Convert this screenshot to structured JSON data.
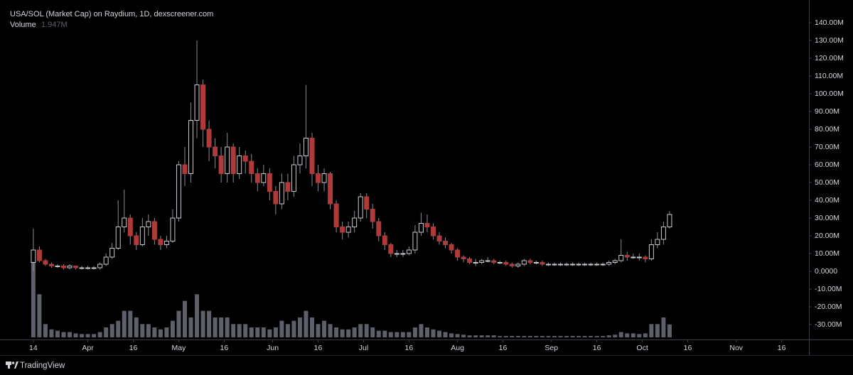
{
  "chart_data": {
    "type": "candlestick",
    "title": "USA/SOL (Market Cap) on Raydium, 1D, dexscreener.com",
    "volume_name": "Volume",
    "volume_value_label": "1.947M",
    "footer": "TradingView",
    "x": [
      "03-14",
      "03-16",
      "03-18",
      "03-20",
      "03-22",
      "03-24",
      "03-26",
      "03-28",
      "03-30",
      "04-01",
      "04-03",
      "04-05",
      "04-07",
      "04-09",
      "04-11",
      "04-13",
      "04-15",
      "04-17",
      "04-19",
      "04-21",
      "04-23",
      "04-25",
      "04-27",
      "04-29",
      "05-01",
      "05-03",
      "05-05",
      "05-07",
      "05-09",
      "05-11",
      "05-13",
      "05-15",
      "05-17",
      "05-19",
      "05-21",
      "05-23",
      "05-25",
      "05-27",
      "05-29",
      "05-31",
      "06-02",
      "06-04",
      "06-06",
      "06-08",
      "06-10",
      "06-12",
      "06-14",
      "06-16",
      "06-18",
      "06-20",
      "06-22",
      "06-24",
      "06-26",
      "06-28",
      "06-30",
      "07-02",
      "07-04",
      "07-06",
      "07-08",
      "07-10",
      "07-12",
      "07-14",
      "07-16",
      "07-18",
      "07-20",
      "07-22",
      "07-24",
      "07-26",
      "07-28",
      "07-30",
      "08-01",
      "08-03",
      "08-05",
      "08-07",
      "08-09",
      "08-11",
      "08-13",
      "08-15",
      "08-17",
      "08-19",
      "08-21",
      "08-23",
      "08-25",
      "08-27",
      "08-29",
      "08-31",
      "09-02",
      "09-04",
      "09-06",
      "09-08",
      "09-10",
      "09-12",
      "09-14",
      "09-16",
      "09-18",
      "09-20",
      "09-22",
      "09-24",
      "09-26",
      "09-28",
      "09-30",
      "10-02",
      "10-04",
      "10-06",
      "10-08",
      "10-10"
    ],
    "open": [
      5,
      12,
      6,
      4,
      3,
      3,
      2,
      3,
      2,
      2,
      2,
      2,
      4,
      8,
      13,
      25,
      30,
      20,
      15,
      25,
      28,
      18,
      15,
      17,
      30,
      60,
      55,
      85,
      105,
      80,
      70,
      65,
      55,
      70,
      55,
      65,
      62,
      55,
      50,
      55,
      45,
      38,
      50,
      45,
      60,
      65,
      75,
      55,
      50,
      55,
      38,
      25,
      22,
      25,
      30,
      42,
      35,
      28,
      20,
      15,
      10,
      10,
      10,
      12,
      22,
      27,
      25,
      20,
      17,
      15,
      12,
      8,
      7,
      5,
      5,
      6,
      6,
      5,
      5,
      4,
      3,
      4,
      6,
      5,
      5,
      4,
      4,
      4,
      4,
      4,
      4,
      4,
      4,
      4,
      4,
      4,
      5,
      6,
      9,
      8,
      8,
      8,
      7,
      15,
      18,
      25
    ],
    "high": [
      24,
      14,
      7,
      5,
      4,
      4,
      4,
      3,
      3,
      3,
      3,
      5,
      10,
      16,
      40,
      46,
      32,
      22,
      30,
      32,
      30,
      20,
      20,
      35,
      62,
      70,
      95,
      130,
      108,
      85,
      75,
      70,
      78,
      72,
      70,
      68,
      66,
      58,
      60,
      58,
      48,
      55,
      55,
      65,
      72,
      105,
      78,
      60,
      58,
      56,
      40,
      28,
      28,
      34,
      44,
      44,
      38,
      30,
      22,
      16,
      12,
      12,
      14,
      26,
      33,
      32,
      27,
      22,
      19,
      16,
      13,
      9,
      8,
      7,
      7,
      8,
      7,
      6,
      6,
      5,
      5,
      7,
      7,
      6,
      6,
      5,
      5,
      5,
      5,
      5,
      5,
      5,
      5,
      5,
      5,
      6,
      7,
      18,
      11,
      10,
      10,
      9,
      18,
      22,
      28,
      34
    ],
    "low": [
      0,
      5,
      3,
      2,
      2,
      1,
      1,
      1,
      1,
      1,
      1,
      1,
      3,
      7,
      12,
      22,
      15,
      12,
      14,
      20,
      15,
      12,
      13,
      16,
      28,
      48,
      50,
      75,
      70,
      62,
      58,
      50,
      50,
      50,
      52,
      55,
      50,
      45,
      48,
      40,
      32,
      35,
      40,
      42,
      55,
      58,
      48,
      45,
      45,
      35,
      22,
      18,
      19,
      22,
      28,
      30,
      24,
      17,
      12,
      8,
      8,
      8,
      9,
      10,
      20,
      22,
      18,
      15,
      13,
      10,
      6,
      5,
      4,
      3,
      4,
      5,
      4,
      4,
      3,
      2,
      2,
      3,
      4,
      4,
      3,
      3,
      3,
      3,
      3,
      3,
      3,
      3,
      3,
      3,
      3,
      3,
      4,
      5,
      6,
      7,
      6,
      5,
      6,
      13,
      15,
      24
    ],
    "close": [
      12,
      6,
      4,
      3,
      3,
      2,
      3,
      2,
      2,
      2,
      2,
      4,
      8,
      13,
      25,
      30,
      20,
      15,
      25,
      28,
      18,
      15,
      17,
      30,
      60,
      55,
      85,
      105,
      80,
      70,
      65,
      55,
      70,
      55,
      65,
      62,
      55,
      50,
      55,
      45,
      38,
      50,
      45,
      60,
      65,
      75,
      55,
      50,
      55,
      38,
      25,
      22,
      25,
      30,
      42,
      35,
      28,
      20,
      15,
      10,
      10,
      10,
      12,
      22,
      27,
      25,
      20,
      17,
      15,
      12,
      8,
      7,
      5,
      5,
      6,
      6,
      5,
      5,
      4,
      3,
      4,
      6,
      5,
      5,
      4,
      4,
      4,
      4,
      4,
      4,
      4,
      4,
      4,
      4,
      4,
      5,
      6,
      9,
      8,
      8,
      8,
      7,
      15,
      18,
      25,
      32
    ],
    "volume": [
      12,
      6.5,
      2,
      1.2,
      1,
      0.8,
      0.8,
      0.6,
      0.5,
      0.5,
      0.5,
      0.8,
      1.5,
      2,
      2.5,
      4,
      4,
      3,
      2,
      2,
      1.5,
      1.2,
      1.5,
      2.5,
      4,
      5.5,
      3,
      6.5,
      4,
      4,
      3,
      3,
      3,
      2,
      2,
      2,
      1.5,
      1.5,
      1.5,
      1.2,
      1.5,
      2.5,
      2,
      2.5,
      3,
      4,
      3,
      2,
      2.5,
      2,
      1.5,
      1.2,
      1.2,
      1.5,
      2,
      2,
      1.5,
      1,
      1,
      0.8,
      0.8,
      0.8,
      0.8,
      1.5,
      2,
      1.5,
      1.2,
      1,
      0.8,
      0.6,
      0.5,
      0.4,
      0.3,
      0.3,
      0.3,
      0.3,
      0.3,
      0.2,
      0.2,
      0.2,
      0.2,
      0.2,
      0.2,
      0.2,
      0.2,
      0.2,
      0.2,
      0.2,
      0.2,
      0.2,
      0.2,
      0.2,
      0.2,
      0.2,
      0.2,
      0.3,
      0.4,
      0.8,
      0.6,
      0.6,
      0.5,
      0.6,
      2,
      2,
      3,
      1.947
    ],
    "xlim": [
      "03-03",
      "11-25"
    ],
    "xticks": [
      {
        "value": "03-14",
        "label": "14"
      },
      {
        "value": "04-01",
        "label": "Apr"
      },
      {
        "value": "04-16",
        "label": "16"
      },
      {
        "value": "05-01",
        "label": "May"
      },
      {
        "value": "05-16",
        "label": "16"
      },
      {
        "value": "06-01",
        "label": "Jun"
      },
      {
        "value": "06-16",
        "label": "16"
      },
      {
        "value": "07-01",
        "label": "Jul"
      },
      {
        "value": "07-16",
        "label": "16"
      },
      {
        "value": "08-01",
        "label": "Aug"
      },
      {
        "value": "08-16",
        "label": "16"
      },
      {
        "value": "09-01",
        "label": "Sep"
      },
      {
        "value": "09-16",
        "label": "16"
      },
      {
        "value": "10-01",
        "label": "Oct"
      },
      {
        "value": "10-16",
        "label": "16"
      },
      {
        "value": "11-01",
        "label": "Nov"
      },
      {
        "value": "11-16",
        "label": "16"
      }
    ],
    "ylim": [
      -37.2,
      149.6
    ],
    "yticks": [
      {
        "value": 140,
        "label": "140.00M"
      },
      {
        "value": 130,
        "label": "130.00M"
      },
      {
        "value": 120,
        "label": "120.00M"
      },
      {
        "value": 110,
        "label": "110.00M"
      },
      {
        "value": 100,
        "label": "100.00M"
      },
      {
        "value": 90,
        "label": "90.00M"
      },
      {
        "value": 80,
        "label": "80.00M"
      },
      {
        "value": 70,
        "label": "70.00M"
      },
      {
        "value": 60,
        "label": "60.00M"
      },
      {
        "value": 50,
        "label": "50.00M"
      },
      {
        "value": 40,
        "label": "40.00M"
      },
      {
        "value": 30,
        "label": "30.00M"
      },
      {
        "value": 20,
        "label": "20.00M"
      },
      {
        "value": 10,
        "label": "10.00M"
      },
      {
        "value": 0,
        "label": "0.0000"
      },
      {
        "value": -10,
        "label": "-10.00M"
      },
      {
        "value": -20,
        "label": "-20.00M"
      },
      {
        "value": -30,
        "label": "-30.00M"
      }
    ],
    "volume_ylim": [
      0,
      50
    ],
    "up_color": "#c9cbd2",
    "down_color": "#b03a3a",
    "wick_color": "#8a8d96",
    "volume_color": "#5d606b"
  }
}
